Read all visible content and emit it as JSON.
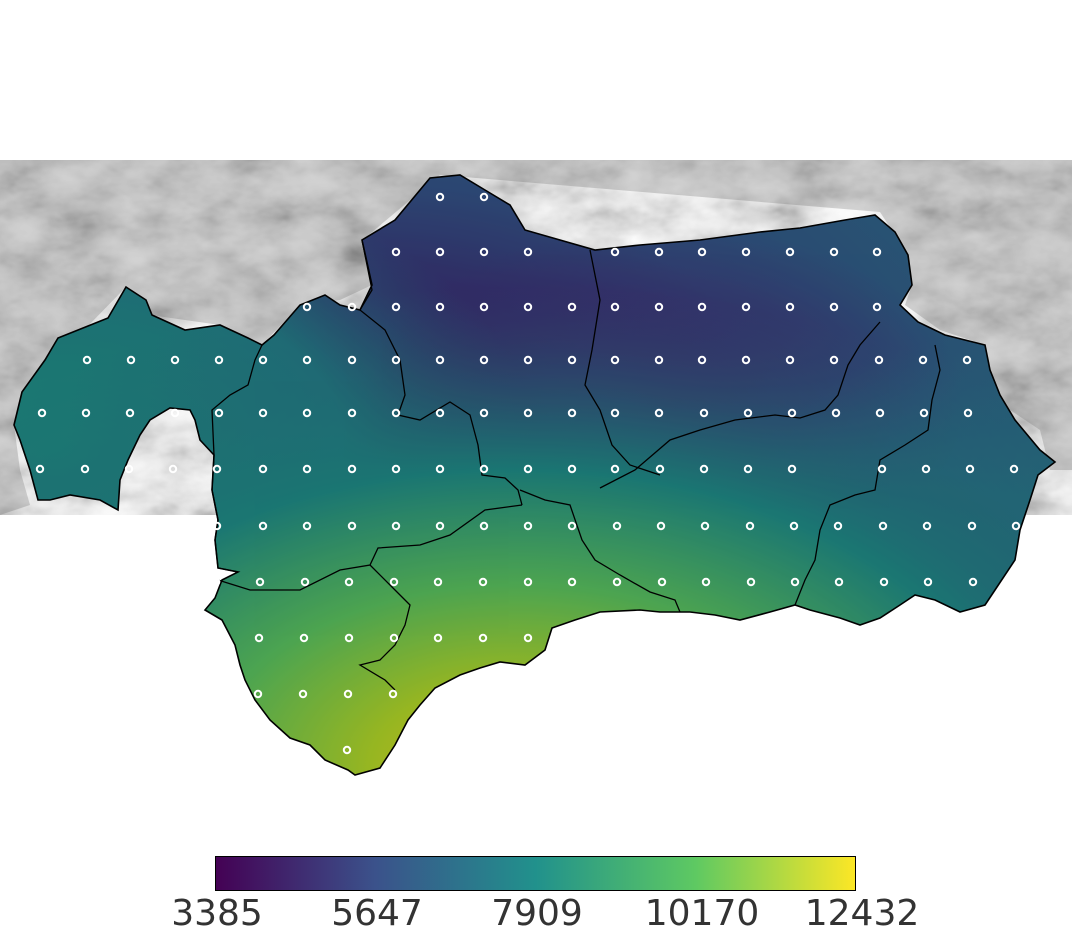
{
  "colorbar": {
    "min": 3385,
    "max": 12432,
    "ticks": [
      "3385",
      "5647",
      "7909",
      "10170",
      "12432"
    ],
    "colormap": "viridis",
    "colors": [
      "#440154",
      "#3b528b",
      "#21918c",
      "#5ec962",
      "#fde725"
    ]
  },
  "terrain_color": "#d6d6d6",
  "boundary_color": "#000000",
  "station_marker_color": "#ffffff"
}
